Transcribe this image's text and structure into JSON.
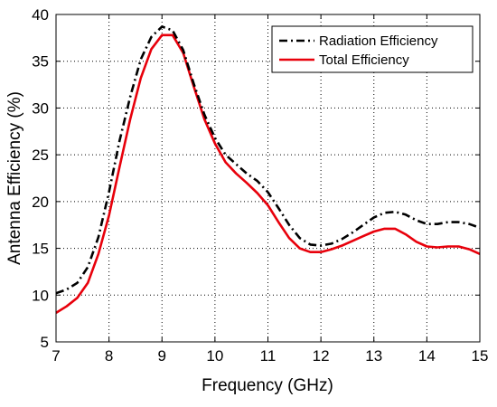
{
  "chart_data": {
    "type": "line",
    "title": "",
    "xlabel": "Frequency (GHz)",
    "ylabel": "Antenna Efficiency (%)",
    "xlim": [
      7,
      15
    ],
    "ylim": [
      5,
      40
    ],
    "xticks": [
      7,
      8,
      9,
      10,
      11,
      12,
      13,
      14,
      15
    ],
    "yticks": [
      5,
      10,
      15,
      20,
      25,
      30,
      35,
      40
    ],
    "grid": true,
    "legend_position": "top-right",
    "series": [
      {
        "name": "Radiation Efficiency",
        "color": "#000000",
        "style": "dash-dot",
        "x": [
          7.0,
          7.2,
          7.4,
          7.6,
          7.8,
          8.0,
          8.2,
          8.4,
          8.6,
          8.8,
          9.0,
          9.2,
          9.4,
          9.6,
          9.8,
          10.0,
          10.2,
          10.4,
          10.6,
          10.8,
          11.0,
          11.2,
          11.4,
          11.6,
          11.8,
          12.0,
          12.2,
          12.4,
          12.6,
          12.8,
          13.0,
          13.2,
          13.4,
          13.6,
          13.8,
          14.0,
          14.2,
          14.4,
          14.6,
          14.8,
          15.0
        ],
        "y": [
          10.2,
          10.6,
          11.3,
          13.0,
          16.2,
          21.0,
          26.5,
          31.2,
          35.2,
          37.6,
          38.7,
          38.3,
          36.2,
          32.6,
          29.3,
          26.8,
          25.0,
          24.0,
          23.0,
          22.2,
          21.0,
          19.3,
          17.5,
          16.1,
          15.4,
          15.3,
          15.5,
          16.0,
          16.7,
          17.5,
          18.3,
          18.8,
          18.9,
          18.6,
          18.0,
          17.6,
          17.6,
          17.8,
          17.8,
          17.6,
          17.2
        ]
      },
      {
        "name": "Total Efficiency",
        "color": "#e8000b",
        "style": "solid",
        "x": [
          7.0,
          7.2,
          7.4,
          7.6,
          7.8,
          8.0,
          8.2,
          8.4,
          8.6,
          8.8,
          9.0,
          9.2,
          9.4,
          9.6,
          9.8,
          10.0,
          10.2,
          10.4,
          10.6,
          10.8,
          11.0,
          11.2,
          11.4,
          11.6,
          11.8,
          12.0,
          12.2,
          12.4,
          12.6,
          12.8,
          13.0,
          13.2,
          13.4,
          13.6,
          13.8,
          14.0,
          14.2,
          14.4,
          14.6,
          14.8,
          15.0
        ],
        "y": [
          8.1,
          8.8,
          9.7,
          11.3,
          14.4,
          18.5,
          23.7,
          28.8,
          33.2,
          36.3,
          37.8,
          37.8,
          35.9,
          32.3,
          28.8,
          26.2,
          24.2,
          23.0,
          22.0,
          20.9,
          19.6,
          17.8,
          16.1,
          15.0,
          14.6,
          14.6,
          14.9,
          15.3,
          15.8,
          16.3,
          16.8,
          17.1,
          17.1,
          16.5,
          15.7,
          15.2,
          15.1,
          15.2,
          15.2,
          14.9,
          14.4
        ]
      }
    ]
  }
}
